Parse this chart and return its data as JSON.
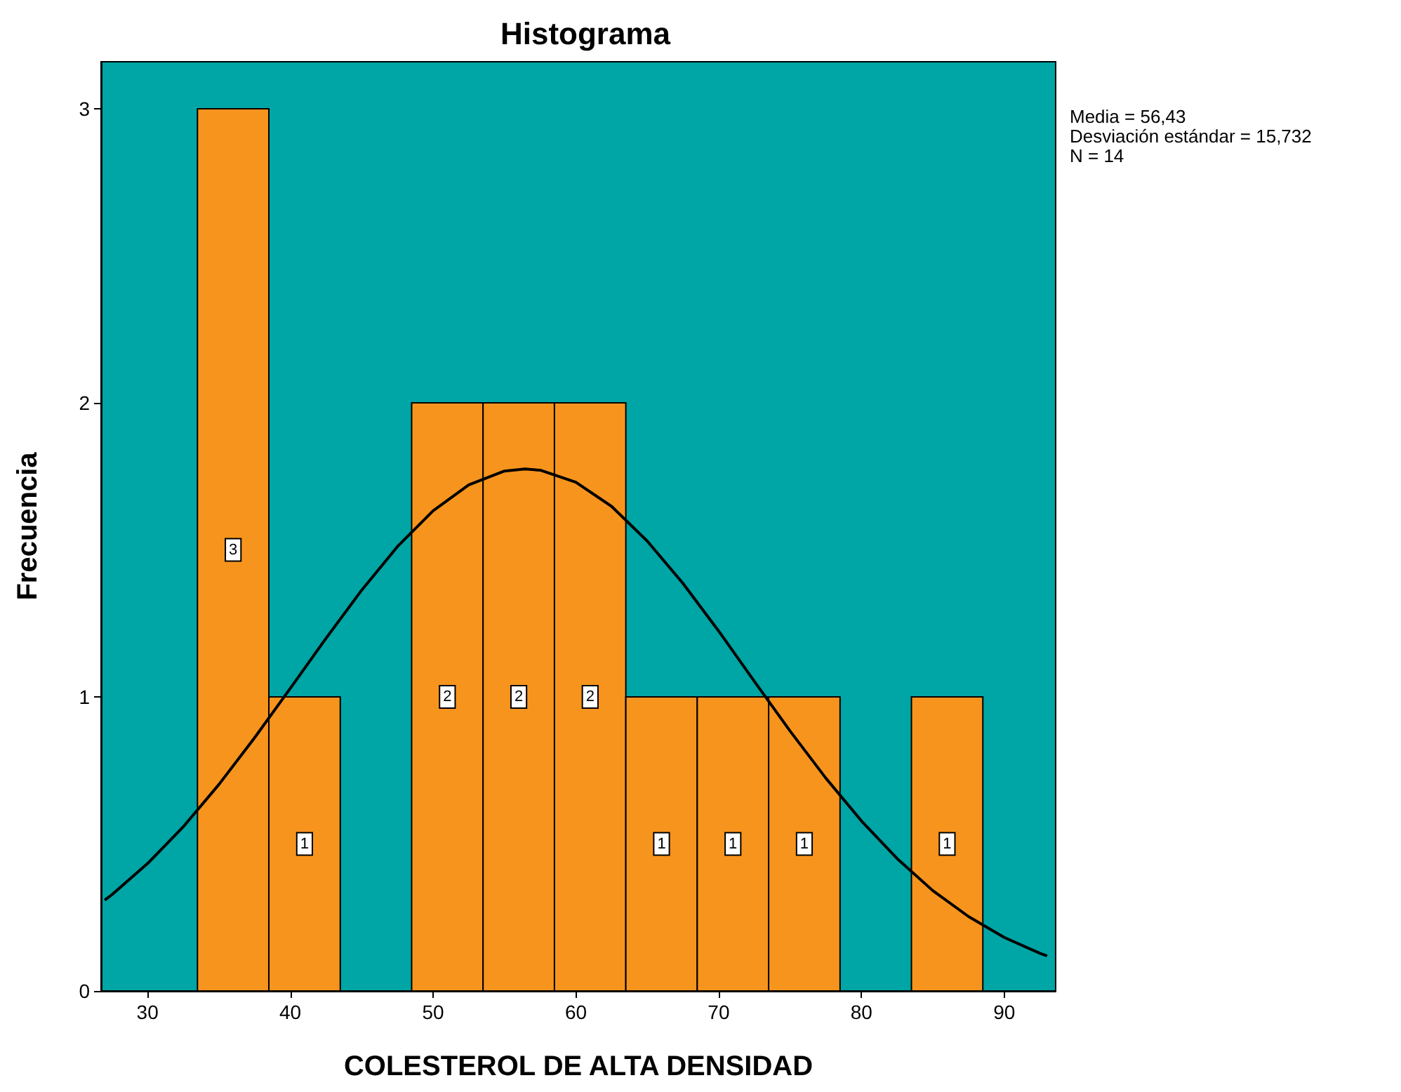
{
  "chart_data": {
    "type": "histogram",
    "title": "Histograma",
    "xlabel": "COLESTEROL DE ALTA DENSIDAD",
    "ylabel": "Frecuencia",
    "annotations": [
      "Media = 56,43\nDesviación estándar = 15,732\nN = 14"
    ],
    "bins": [
      33.5,
      38.5,
      43.5,
      48.5,
      53.5,
      58.5,
      63.5,
      68.5,
      73.5,
      78.5,
      83.5,
      88.5
    ],
    "series": [
      {
        "color": "#f7941d",
        "values": [
          3,
          1,
          0,
          2,
          2,
          2,
          1,
          1,
          1,
          0,
          1
        ],
        "value_labels": [
          "3",
          "1",
          null,
          "2",
          "2",
          "2",
          "1",
          "1",
          "1",
          null,
          "1"
        ]
      },
      {
        "type": "line",
        "color": "#000000",
        "x": [
          27,
          27.5,
          30,
          32.5,
          35,
          37.5,
          40,
          42.5,
          45,
          47.5,
          50,
          52.5,
          55,
          56.43,
          57.5,
          60,
          62.5,
          65,
          67.5,
          70,
          72.5,
          75,
          77.5,
          80,
          82.5,
          85,
          87.5,
          90,
          92.5,
          93
        ],
        "values": [
          0.309,
          0.327,
          0.433,
          0.558,
          0.702,
          0.861,
          1.029,
          1.199,
          1.363,
          1.511,
          1.633,
          1.721,
          1.768,
          1.775,
          1.771,
          1.73,
          1.648,
          1.53,
          1.386,
          1.224,
          1.053,
          0.884,
          0.724,
          0.578,
          0.45,
          0.341,
          0.253,
          0.182,
          0.128,
          0.119
        ]
      }
    ],
    "xlim": [
      26.75,
      93.6
    ],
    "xticks": [
      30,
      40,
      50,
      60,
      70,
      80,
      90
    ],
    "ylim": [
      0,
      3.16
    ],
    "yticks": [
      0,
      1,
      2,
      3
    ],
    "grid": false,
    "marker": "none",
    "line_style": "solid"
  }
}
